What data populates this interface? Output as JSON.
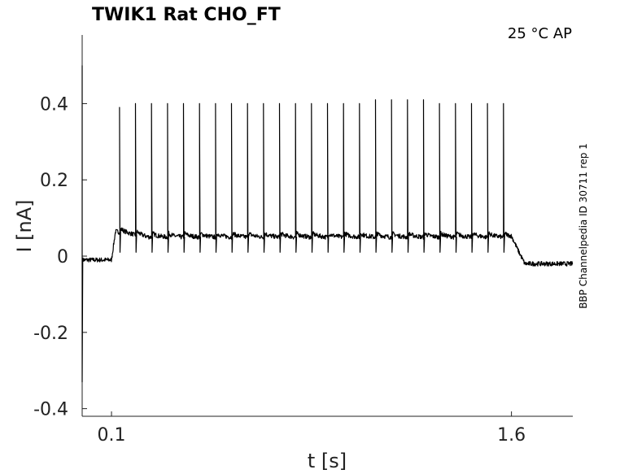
{
  "chart_data": {
    "type": "line",
    "title": "TWIK1  Rat  CHO_FT",
    "annotation": "25 °C  AP",
    "side_label": "BBP Channelpedia ID 30711 rep 1",
    "xlabel": "t [s]",
    "ylabel": "I [nA]",
    "xlim": [
      -0.01,
      1.83
    ],
    "ylim": [
      -0.42,
      0.58
    ],
    "x_ticks": [
      {
        "value": 0.1,
        "label": "0.1"
      },
      {
        "value": 1.6,
        "label": "1.6"
      }
    ],
    "y_ticks": [
      {
        "value": 0.4,
        "label": "0.4"
      },
      {
        "value": 0.2,
        "label": "0.2"
      },
      {
        "value": 0,
        "label": "0"
      },
      {
        "value": -0.2,
        "label": "-0.2"
      },
      {
        "value": -0.4,
        "label": "-0.4"
      }
    ],
    "grid": false,
    "line_color": "#000000",
    "series": [
      {
        "baseline_before": -0.01,
        "plateau": 0.05,
        "baseline_after": -0.02,
        "stim_on": 0.1,
        "stim_off": 1.6,
        "spike_times": [
          0.13,
          0.19,
          0.25,
          0.31,
          0.37,
          0.43,
          0.49,
          0.55,
          0.61,
          0.67,
          0.73,
          0.79,
          0.85,
          0.91,
          0.97,
          1.03,
          1.09,
          1.15,
          1.21,
          1.27,
          1.33,
          1.39,
          1.45,
          1.51,
          1.57
        ],
        "spike_peaks": [
          0.39,
          0.4,
          0.4,
          0.4,
          0.4,
          0.4,
          0.4,
          0.4,
          0.4,
          0.4,
          0.4,
          0.4,
          0.4,
          0.4,
          0.4,
          0.4,
          0.41,
          0.41,
          0.41,
          0.41,
          0.4,
          0.4,
          0.4,
          0.4,
          0.4
        ],
        "spike_troughs": [
          0.01,
          0.01,
          0.01,
          0.01,
          0.01,
          0.01,
          0.01,
          0.01,
          0.01,
          0.01,
          0.01,
          0.01,
          0.01,
          0.01,
          0.01,
          0.01,
          0.01,
          0.01,
          0.01,
          0.01,
          0.01,
          0.01,
          0.01,
          0.01,
          0.01
        ],
        "onset_transient_min": -0.33,
        "onset_transient_max": 0.5
      }
    ]
  }
}
